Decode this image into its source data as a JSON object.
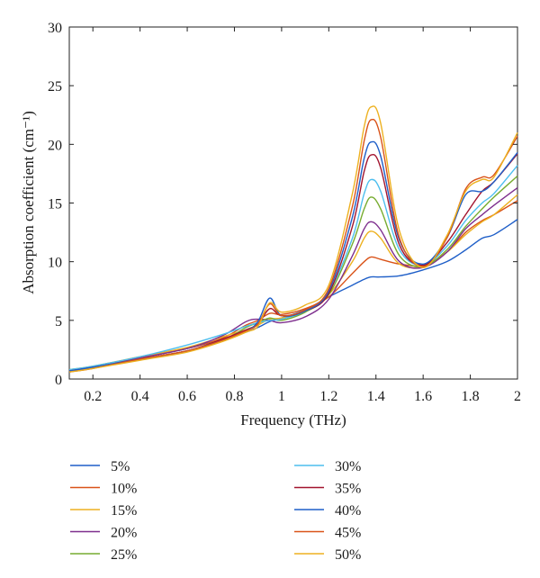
{
  "chart_data": {
    "type": "line",
    "xlabel": "Frequency (THz)",
    "ylabel": "Absorption coefficient (cm⁻¹)",
    "xlim": [
      0.1,
      2.0
    ],
    "ylim": [
      0,
      30
    ],
    "x_ticks": [
      0.2,
      0.4,
      0.6,
      0.8,
      1,
      1.2,
      1.4,
      1.6,
      1.8,
      2
    ],
    "x_tick_labels": [
      "0.2",
      "0.4",
      "0.6",
      "0.8",
      "1",
      "1.2",
      "1.4",
      "1.6",
      "1.8",
      "2"
    ],
    "y_ticks": [
      0,
      5,
      10,
      15,
      20,
      25,
      30
    ],
    "y_tick_labels": [
      "0",
      "5",
      "10",
      "15",
      "20",
      "25",
      "30"
    ],
    "grid": false,
    "legend_placement": "below",
    "x": [
      0.1,
      0.2,
      0.4,
      0.6,
      0.75,
      0.85,
      0.9,
      0.95,
      1.0,
      1.1,
      1.2,
      1.3,
      1.35,
      1.38,
      1.42,
      1.5,
      1.6,
      1.7,
      1.78,
      1.85,
      1.9,
      2.0
    ],
    "series": [
      {
        "name": "5%",
        "color": "#1f5fc8",
        "values": [
          0.6,
          1.0,
          1.8,
          2.6,
          3.4,
          4.0,
          4.4,
          4.9,
          5.2,
          5.9,
          7.0,
          8.0,
          8.5,
          8.7,
          8.7,
          8.8,
          9.3,
          10.0,
          11.0,
          12.0,
          12.3,
          13.6
        ]
      },
      {
        "name": "10%",
        "color": "#d95319",
        "values": [
          0.7,
          1.0,
          1.8,
          2.6,
          3.5,
          4.6,
          5.0,
          5.6,
          5.5,
          6.0,
          7.0,
          9.0,
          10.0,
          10.4,
          10.2,
          9.8,
          9.7,
          10.8,
          12.5,
          13.5,
          14.0,
          15.2
        ]
      },
      {
        "name": "15%",
        "color": "#edb120",
        "values": [
          0.8,
          1.1,
          1.9,
          2.7,
          3.6,
          4.2,
          4.6,
          5.1,
          5.2,
          5.8,
          7.2,
          10.0,
          12.0,
          12.6,
          12.0,
          9.8,
          9.6,
          10.8,
          12.3,
          13.4,
          14.0,
          15.7
        ]
      },
      {
        "name": "20%",
        "color": "#7e2f8e",
        "values": [
          0.7,
          1.0,
          1.8,
          2.6,
          3.7,
          4.9,
          5.1,
          5.0,
          4.8,
          5.3,
          6.8,
          10.5,
          12.8,
          13.4,
          12.7,
          10.0,
          9.5,
          10.8,
          12.8,
          14.0,
          14.8,
          16.3
        ]
      },
      {
        "name": "25%",
        "color": "#77ac30",
        "values": [
          0.7,
          1.0,
          1.7,
          2.4,
          3.3,
          4.4,
          4.8,
          5.2,
          5.0,
          5.7,
          7.2,
          11.5,
          14.5,
          15.5,
          14.5,
          10.5,
          9.6,
          11.0,
          13.0,
          14.5,
          15.5,
          17.3
        ]
      },
      {
        "name": "30%",
        "color": "#4dbeee",
        "values": [
          0.8,
          1.1,
          1.9,
          2.9,
          3.8,
          4.5,
          4.8,
          5.0,
          5.1,
          5.8,
          7.4,
          12.0,
          15.8,
          17.0,
          16.0,
          11.0,
          9.7,
          11.3,
          13.5,
          15.0,
          15.8,
          18.2
        ]
      },
      {
        "name": "35%",
        "color": "#a2142f",
        "values": [
          0.7,
          1.0,
          1.7,
          2.4,
          3.4,
          4.2,
          4.7,
          6.0,
          5.4,
          5.8,
          7.3,
          13.0,
          17.7,
          19.1,
          18.0,
          11.4,
          9.7,
          11.6,
          14.0,
          16.0,
          16.8,
          19.2
        ]
      },
      {
        "name": "40%",
        "color": "#1f5fc8",
        "values": [
          0.7,
          1.0,
          1.7,
          2.4,
          3.3,
          4.1,
          4.9,
          6.9,
          5.4,
          5.8,
          7.5,
          13.8,
          18.8,
          20.2,
          19.0,
          11.8,
          9.8,
          12.0,
          15.7,
          16.0,
          16.8,
          19.3
        ]
      },
      {
        "name": "45%",
        "color": "#d95319",
        "values": [
          0.6,
          0.9,
          1.7,
          2.4,
          3.3,
          4.1,
          4.7,
          6.4,
          5.4,
          5.9,
          7.7,
          14.7,
          20.3,
          22.1,
          20.6,
          12.0,
          9.6,
          12.0,
          16.2,
          17.2,
          17.4,
          20.7
        ]
      },
      {
        "name": "50%",
        "color": "#edb120",
        "values": [
          0.6,
          0.9,
          1.6,
          2.3,
          3.2,
          4.0,
          4.5,
          6.5,
          5.7,
          6.3,
          8.0,
          15.8,
          21.5,
          23.2,
          21.8,
          12.6,
          9.5,
          12.2,
          16.0,
          17.0,
          17.2,
          21.0
        ]
      }
    ]
  }
}
